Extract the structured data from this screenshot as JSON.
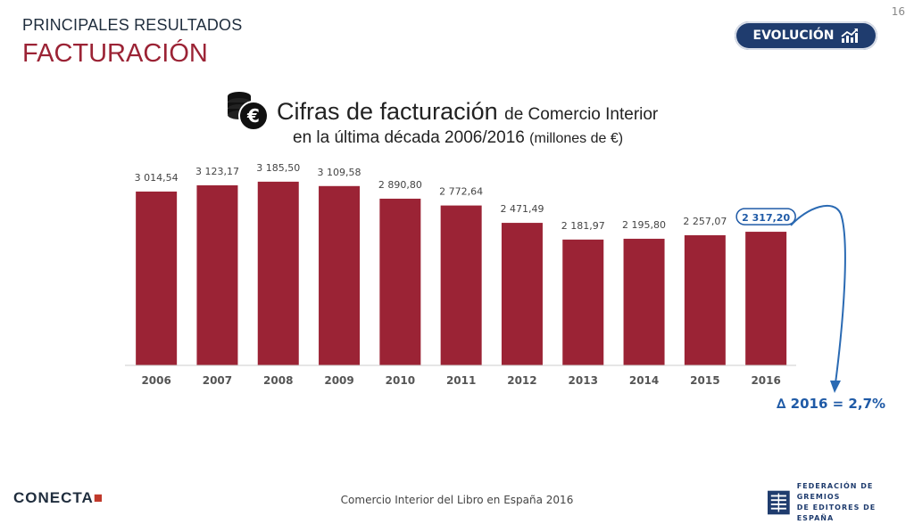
{
  "header": {
    "section": "PRINCIPALES RESULTADOS",
    "title": "FACTURACIÓN",
    "page_number": "16",
    "badge_label": "EVOLUCIÓN"
  },
  "chart_header": {
    "title_main": "Cifras de facturación",
    "title_rest": "de Comercio Interior",
    "subtitle_main": "en la última década 2006/2016",
    "subtitle_unit": "(millones de €)"
  },
  "chart_data": {
    "type": "bar",
    "title": "Cifras de facturación de Comercio Interior en la última década 2006/2016 (millones de €)",
    "categories": [
      "2006",
      "2007",
      "2008",
      "2009",
      "2010",
      "2011",
      "2012",
      "2013",
      "2014",
      "2015",
      "2016"
    ],
    "values": [
      3014.54,
      3123.17,
      3185.5,
      3109.58,
      2890.8,
      2772.64,
      2471.49,
      2181.97,
      2195.8,
      2257.07,
      2317.2
    ],
    "labels": [
      "3 014,54",
      "3 123,17",
      "3 185,50",
      "3 109,58",
      "2 890,80",
      "2 772,64",
      "2 471,49",
      "2 181,97",
      "2 195,80",
      "2 257,07",
      "2 317,20"
    ],
    "highlight_index": 10,
    "xlabel": "",
    "ylabel": "",
    "ylim": [
      0,
      3400
    ],
    "grid": false,
    "colors": {
      "bar": "#9b2335",
      "highlight": "#1f5aa6",
      "tick": "#555555"
    }
  },
  "annotation": {
    "delta": "∆ 2016 = 2,7%"
  },
  "footer": {
    "caption": "Comercio Interior del Libro en España 2016",
    "logo_left": "CONECTA",
    "logo_right_line1": "FEDERACIÓN DE GREMIOS",
    "logo_right_line2": "DE EDITORES DE ESPAÑA"
  }
}
